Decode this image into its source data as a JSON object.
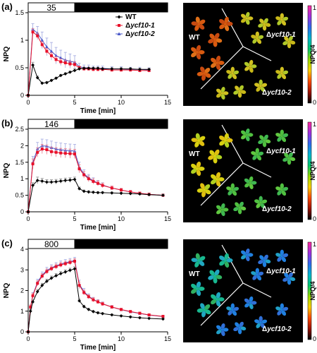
{
  "colors": {
    "wt": "#000000",
    "mut1": "#e8102a",
    "mut2": "#4a58c8",
    "err": "#a0a8e0",
    "bar_on": "#ffffff",
    "bar_off": "#000000",
    "image_bg": "#000000"
  },
  "legend": {
    "wt": "WT",
    "mut1": "Δycf10-1",
    "mut2": "Δycf10-2"
  },
  "icons": {
    "wt": "diamond-marker",
    "mut1": "square-marker",
    "mut2": "triangle-marker"
  },
  "image_labels": {
    "wt": "WT",
    "mut1": "Δycf10-1",
    "mut2": "Δycf10-2"
  },
  "colorbar": {
    "label": "NPQ/4",
    "top": "1",
    "bottom": "0",
    "gradient": [
      "#000000",
      "#9b1000",
      "#ff4800",
      "#ffd000",
      "#9ce000",
      "#00c870",
      "#00b8d0",
      "#2f6cf0",
      "#a030e0",
      "#ff2a9a"
    ]
  },
  "chart_data": [
    {
      "type": "line",
      "panel": "(a)",
      "light_label": "35",
      "xlabel": "Time [min]",
      "ylabel": "NPQ",
      "xlim": [
        0,
        15
      ],
      "ylim": [
        0,
        1.5
      ],
      "xticks": [
        0,
        5,
        10,
        15
      ],
      "yticks": [
        0,
        0.5,
        1.0,
        1.5
      ],
      "ytick_labels": [
        "0",
        "0.5",
        "1",
        "1.5"
      ],
      "light_on_end": 5,
      "leaf_tint": "#e07818",
      "series": [
        {
          "name": "WT",
          "x": [
            0,
            0.5,
            1,
            1.5,
            2,
            2.5,
            3,
            3.5,
            4,
            4.5,
            5,
            5.5,
            6,
            6.5,
            7,
            7.5,
            8,
            9,
            10,
            11,
            12,
            13
          ],
          "y": [
            0,
            0.55,
            0.32,
            0.22,
            0.23,
            0.27,
            0.31,
            0.36,
            0.39,
            0.42,
            0.45,
            0.48,
            0.49,
            0.49,
            0.49,
            0.49,
            0.48,
            0.48,
            0.48,
            0.48,
            0.47,
            0.47
          ],
          "err": [
            0,
            0.05,
            0.03,
            0.02,
            0.02,
            0.02,
            0.02,
            0.02,
            0.02,
            0.02,
            0.03,
            0.02,
            0.02,
            0.02,
            0.02,
            0.02,
            0.02,
            0.02,
            0.02,
            0.02,
            0.02,
            0.02
          ]
        },
        {
          "name": "Δycf10-1",
          "x": [
            0,
            0.5,
            1,
            1.5,
            2,
            2.5,
            3,
            3.5,
            4,
            4.5,
            5,
            5.5,
            6,
            6.5,
            7,
            7.5,
            8,
            9,
            10,
            11,
            12,
            13
          ],
          "y": [
            0,
            1.15,
            1.08,
            0.92,
            0.8,
            0.72,
            0.65,
            0.61,
            0.59,
            0.57,
            0.56,
            0.5,
            0.48,
            0.48,
            0.47,
            0.47,
            0.47,
            0.46,
            0.46,
            0.46,
            0.45,
            0.45
          ],
          "err": [
            0,
            0.06,
            0.05,
            0.05,
            0.05,
            0.05,
            0.05,
            0.05,
            0.05,
            0.05,
            0.05,
            0.03,
            0.03,
            0.03,
            0.03,
            0.03,
            0.03,
            0.03,
            0.03,
            0.03,
            0.03,
            0.03
          ]
        },
        {
          "name": "Δycf10-2",
          "x": [
            0,
            0.5,
            1,
            1.5,
            2,
            2.5,
            3,
            3.5,
            4,
            4.5,
            5,
            5.5,
            6,
            6.5,
            7,
            7.5,
            8,
            9,
            10,
            11,
            12,
            13
          ],
          "y": [
            0,
            1.2,
            1.13,
            1.0,
            0.88,
            0.8,
            0.72,
            0.68,
            0.64,
            0.62,
            0.6,
            0.52,
            0.5,
            0.5,
            0.49,
            0.49,
            0.49,
            0.48,
            0.48,
            0.47,
            0.47,
            0.46
          ],
          "err": [
            0,
            0.1,
            0.12,
            0.15,
            0.16,
            0.16,
            0.15,
            0.14,
            0.14,
            0.13,
            0.12,
            0.06,
            0.05,
            0.05,
            0.04,
            0.04,
            0.04,
            0.04,
            0.04,
            0.04,
            0.04,
            0.04
          ]
        }
      ]
    },
    {
      "type": "line",
      "panel": "(b)",
      "light_label": "146",
      "xlabel": "Time [min]",
      "ylabel": "NPQ",
      "xlim": [
        0,
        15
      ],
      "ylim": [
        0,
        2.5
      ],
      "xticks": [
        0,
        5,
        10,
        15
      ],
      "yticks": [
        0,
        0.5,
        1.0,
        1.5,
        2.0,
        2.5
      ],
      "ytick_labels": [
        "0",
        "0.5",
        "1",
        "1.5",
        "2",
        "2.5"
      ],
      "light_on_end": 5,
      "leaf_tint": "#8ccc10",
      "series": [
        {
          "name": "WT",
          "x": [
            0,
            0.5,
            1,
            1.5,
            2,
            2.5,
            3,
            3.5,
            4,
            4.5,
            5,
            5.5,
            6,
            6.5,
            7,
            7.5,
            8,
            9,
            10,
            11,
            12,
            13,
            14.5
          ],
          "y": [
            0,
            0.8,
            0.95,
            0.93,
            0.9,
            0.9,
            0.91,
            0.93,
            0.95,
            0.96,
            0.98,
            0.7,
            0.62,
            0.6,
            0.59,
            0.58,
            0.58,
            0.57,
            0.56,
            0.55,
            0.54,
            0.52,
            0.5
          ],
          "err": [
            0,
            0.08,
            0.1,
            0.08,
            0.07,
            0.07,
            0.07,
            0.07,
            0.07,
            0.07,
            0.07,
            0.05,
            0.04,
            0.04,
            0.03,
            0.03,
            0.03,
            0.03,
            0.03,
            0.03,
            0.03,
            0.03,
            0.03
          ]
        },
        {
          "name": "Δycf10-1",
          "x": [
            0,
            0.5,
            1,
            1.5,
            2,
            2.5,
            3,
            3.5,
            4,
            4.5,
            5,
            5.5,
            6,
            6.5,
            7,
            7.5,
            8,
            9,
            10,
            11,
            12,
            13,
            14.5
          ],
          "y": [
            0,
            1.45,
            1.8,
            1.9,
            1.88,
            1.82,
            1.8,
            1.78,
            1.77,
            1.76,
            1.75,
            1.3,
            1.12,
            1.0,
            0.92,
            0.86,
            0.8,
            0.72,
            0.66,
            0.6,
            0.56,
            0.53,
            0.5
          ],
          "err": [
            0,
            0.15,
            0.14,
            0.14,
            0.14,
            0.14,
            0.14,
            0.14,
            0.14,
            0.14,
            0.14,
            0.12,
            0.1,
            0.09,
            0.08,
            0.07,
            0.07,
            0.06,
            0.05,
            0.05,
            0.04,
            0.04,
            0.04
          ]
        },
        {
          "name": "Δycf10-2",
          "x": [
            0,
            0.5,
            1,
            1.5,
            2,
            2.5,
            3,
            3.5,
            4,
            4.5,
            5,
            5.5,
            6,
            6.5,
            7,
            7.5,
            8,
            9,
            10,
            11,
            12,
            13,
            14.5
          ],
          "y": [
            0,
            1.5,
            1.9,
            2.0,
            1.98,
            1.94,
            1.9,
            1.88,
            1.86,
            1.85,
            1.84,
            1.35,
            1.15,
            1.03,
            0.94,
            0.87,
            0.81,
            0.72,
            0.66,
            0.6,
            0.56,
            0.53,
            0.5
          ],
          "err": [
            0,
            0.18,
            0.2,
            0.2,
            0.2,
            0.2,
            0.2,
            0.2,
            0.2,
            0.2,
            0.2,
            0.15,
            0.12,
            0.1,
            0.09,
            0.08,
            0.07,
            0.06,
            0.05,
            0.05,
            0.04,
            0.04,
            0.04
          ]
        }
      ]
    },
    {
      "type": "line",
      "panel": "(c)",
      "light_label": "800",
      "xlabel": "Time [min]",
      "ylabel": "NPQ",
      "xlim": [
        0,
        15
      ],
      "ylim": [
        0,
        4
      ],
      "xticks": [
        0,
        5,
        10,
        15
      ],
      "yticks": [
        0,
        1,
        2,
        3,
        4
      ],
      "ytick_labels": [
        "0",
        "1",
        "2",
        "3",
        "4"
      ],
      "light_on_end": 5,
      "leaf_tint": "#10b0a8",
      "series": [
        {
          "name": "WT",
          "x": [
            0,
            0.25,
            0.5,
            1,
            1.5,
            2,
            2.5,
            3,
            3.5,
            4,
            4.5,
            5,
            5.5,
            6,
            6.5,
            7,
            7.5,
            8,
            9,
            10,
            11,
            12,
            13,
            14.5
          ],
          "y": [
            0,
            1.0,
            1.45,
            1.95,
            2.25,
            2.45,
            2.6,
            2.72,
            2.82,
            2.9,
            2.98,
            3.05,
            1.5,
            1.22,
            1.08,
            0.98,
            0.92,
            0.88,
            0.82,
            0.77,
            0.72,
            0.68,
            0.65,
            0.62
          ],
          "err": [
            0,
            0.08,
            0.1,
            0.1,
            0.1,
            0.1,
            0.1,
            0.1,
            0.1,
            0.1,
            0.1,
            0.1,
            0.08,
            0.07,
            0.06,
            0.05,
            0.05,
            0.05,
            0.04,
            0.04,
            0.04,
            0.04,
            0.04,
            0.04
          ]
        },
        {
          "name": "Δycf10-1",
          "x": [
            0,
            0.25,
            0.5,
            1,
            1.5,
            2,
            2.5,
            3,
            3.5,
            4,
            4.5,
            5,
            5.5,
            6,
            6.5,
            7,
            7.5,
            8,
            9,
            10,
            11,
            12,
            13,
            14.5
          ],
          "y": [
            0,
            1.2,
            1.75,
            2.35,
            2.7,
            2.92,
            3.06,
            3.16,
            3.24,
            3.3,
            3.36,
            3.42,
            2.25,
            1.9,
            1.7,
            1.55,
            1.45,
            1.35,
            1.2,
            1.08,
            0.98,
            0.9,
            0.82,
            0.75
          ],
          "err": [
            0,
            0.1,
            0.12,
            0.12,
            0.12,
            0.12,
            0.12,
            0.12,
            0.12,
            0.12,
            0.12,
            0.12,
            0.15,
            0.12,
            0.1,
            0.1,
            0.09,
            0.08,
            0.07,
            0.06,
            0.06,
            0.05,
            0.05,
            0.05
          ]
        },
        {
          "name": "Δycf10-2",
          "x": [
            0,
            0.25,
            0.5,
            1,
            1.5,
            2,
            2.5,
            3,
            3.5,
            4,
            4.5,
            5,
            5.5,
            6,
            6.5,
            7,
            7.5,
            8,
            9,
            10,
            11,
            12,
            13,
            14.5
          ],
          "y": [
            0,
            1.2,
            1.78,
            2.4,
            2.75,
            2.97,
            3.1,
            3.2,
            3.28,
            3.35,
            3.4,
            3.46,
            2.3,
            1.95,
            1.72,
            1.57,
            1.46,
            1.36,
            1.2,
            1.07,
            0.97,
            0.89,
            0.81,
            0.74
          ],
          "err": [
            0,
            0.1,
            0.12,
            0.15,
            0.15,
            0.15,
            0.15,
            0.15,
            0.15,
            0.15,
            0.15,
            0.15,
            0.2,
            0.15,
            0.12,
            0.1,
            0.1,
            0.09,
            0.08,
            0.07,
            0.06,
            0.06,
            0.05,
            0.05
          ]
        }
      ]
    }
  ]
}
